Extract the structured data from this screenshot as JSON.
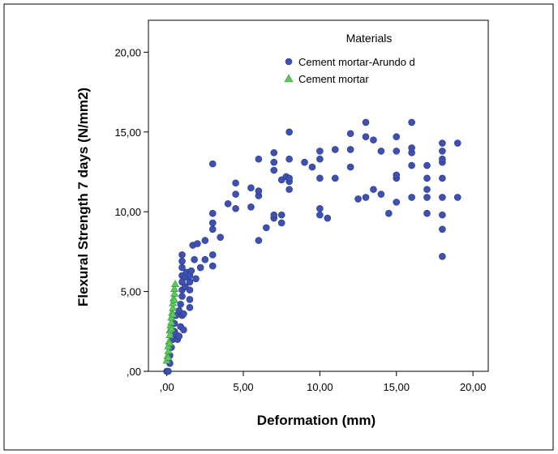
{
  "chart_data": {
    "type": "scatter",
    "title": "",
    "xlabel": "Deformation (mm)",
    "ylabel": "Flexural Strength 7 days (N/mm2)",
    "xlim": [
      -1.2,
      21.0
    ],
    "ylim": [
      0,
      22.0
    ],
    "xticks": [
      0,
      5,
      10,
      15,
      20
    ],
    "yticks": [
      0,
      5,
      10,
      15,
      20
    ],
    "xtick_labels": [
      ",00",
      "5,00",
      "10,00",
      "15,00",
      "20,00"
    ],
    "ytick_labels": [
      ",00",
      "5,00",
      "10,00",
      "15,00",
      "20,00"
    ],
    "grid": false,
    "legend_position": "top-right",
    "legend": {
      "title": "Materials",
      "entries": [
        {
          "label": "Cement mortar-Arundo d",
          "marker": "circle",
          "color": "#3f51b0"
        },
        {
          "label": "Cement mortar",
          "marker": "triangle",
          "color": "#5ec85e"
        }
      ]
    },
    "series": [
      {
        "name": "Cement mortar-Arundo d",
        "marker": "circle",
        "color": "#3f51b0",
        "points": [
          [
            0,
            0
          ],
          [
            0.05,
            0
          ],
          [
            0.1,
            0
          ],
          [
            0.2,
            0.5
          ],
          [
            0.2,
            1.0
          ],
          [
            0.3,
            1.5
          ],
          [
            0.4,
            2.0
          ],
          [
            0.5,
            2.5
          ],
          [
            0.5,
            3.0
          ],
          [
            0.6,
            3.5
          ],
          [
            0.6,
            2.3
          ],
          [
            0.7,
            2.0
          ],
          [
            0.8,
            2.2
          ],
          [
            0.8,
            3.8
          ],
          [
            0.9,
            4.2
          ],
          [
            0.9,
            2.8
          ],
          [
            1.0,
            3.5
          ],
          [
            1.0,
            4.7
          ],
          [
            1.0,
            5.1
          ],
          [
            1.0,
            5.6
          ],
          [
            1.0,
            6.0
          ],
          [
            1.0,
            6.5
          ],
          [
            1.0,
            6.9
          ],
          [
            1.0,
            7.3
          ],
          [
            1.1,
            2.6
          ],
          [
            1.1,
            3.6
          ],
          [
            1.2,
            5.3
          ],
          [
            1.2,
            5.9
          ],
          [
            1.3,
            6.2
          ],
          [
            1.5,
            4.0
          ],
          [
            1.5,
            4.5
          ],
          [
            1.5,
            5.1
          ],
          [
            1.5,
            5.6
          ],
          [
            1.5,
            6.0
          ],
          [
            1.6,
            6.3
          ],
          [
            1.7,
            7.9
          ],
          [
            1.8,
            7.0
          ],
          [
            1.9,
            5.8
          ],
          [
            2.0,
            8.0
          ],
          [
            2.2,
            6.5
          ],
          [
            2.5,
            8.2
          ],
          [
            2.5,
            7.0
          ],
          [
            3.0,
            6.6
          ],
          [
            3.0,
            7.3
          ],
          [
            3.0,
            8.9
          ],
          [
            3.0,
            9.3
          ],
          [
            3.0,
            9.9
          ],
          [
            3.0,
            13.0
          ],
          [
            3.5,
            8.4
          ],
          [
            4.0,
            10.5
          ],
          [
            4.5,
            10.2
          ],
          [
            4.5,
            11.1
          ],
          [
            4.5,
            11.8
          ],
          [
            5.5,
            10.3
          ],
          [
            5.5,
            11.5
          ],
          [
            6.0,
            8.2
          ],
          [
            6.0,
            11.0
          ],
          [
            6.0,
            11.3
          ],
          [
            6.0,
            13.3
          ],
          [
            6.5,
            9.0
          ],
          [
            7.0,
            9.6
          ],
          [
            7.0,
            9.8
          ],
          [
            7.0,
            12.6
          ],
          [
            7.0,
            13.1
          ],
          [
            7.0,
            13.7
          ],
          [
            7.5,
            9.3
          ],
          [
            7.5,
            9.8
          ],
          [
            7.5,
            12.0
          ],
          [
            7.8,
            12.2
          ],
          [
            8.0,
            11.4
          ],
          [
            8.0,
            11.9
          ],
          [
            8.0,
            12.1
          ],
          [
            8.0,
            13.3
          ],
          [
            8.0,
            15.0
          ],
          [
            9.0,
            13.1
          ],
          [
            9.5,
            12.8
          ],
          [
            10.0,
            9.8
          ],
          [
            10.0,
            10.2
          ],
          [
            10.0,
            12.1
          ],
          [
            10.0,
            13.3
          ],
          [
            10.0,
            13.8
          ],
          [
            10.5,
            9.6
          ],
          [
            11.0,
            12.1
          ],
          [
            11.0,
            13.9
          ],
          [
            12.0,
            12.8
          ],
          [
            12.0,
            13.9
          ],
          [
            12.0,
            14.9
          ],
          [
            12.5,
            10.8
          ],
          [
            13.0,
            10.9
          ],
          [
            13.0,
            14.7
          ],
          [
            13.0,
            15.6
          ],
          [
            13.5,
            11.4
          ],
          [
            13.5,
            14.5
          ],
          [
            14.0,
            11.1
          ],
          [
            14.0,
            13.8
          ],
          [
            14.5,
            9.9
          ],
          [
            15.0,
            10.6
          ],
          [
            15.0,
            12.1
          ],
          [
            15.0,
            12.3
          ],
          [
            15.0,
            13.8
          ],
          [
            15.0,
            14.7
          ],
          [
            16.0,
            10.9
          ],
          [
            16.0,
            12.9
          ],
          [
            16.0,
            13.7
          ],
          [
            16.0,
            14.0
          ],
          [
            16.0,
            15.6
          ],
          [
            17.0,
            9.9
          ],
          [
            17.0,
            10.9
          ],
          [
            17.0,
            11.4
          ],
          [
            17.0,
            12.1
          ],
          [
            17.0,
            12.9
          ],
          [
            18.0,
            7.2
          ],
          [
            18.0,
            8.9
          ],
          [
            18.0,
            9.8
          ],
          [
            18.0,
            10.9
          ],
          [
            18.0,
            12.1
          ],
          [
            18.0,
            13.1
          ],
          [
            18.0,
            13.3
          ],
          [
            18.0,
            13.8
          ],
          [
            18.0,
            14.3
          ],
          [
            19.0,
            10.9
          ],
          [
            19.0,
            14.3
          ]
        ]
      },
      {
        "name": "Cement mortar",
        "marker": "triangle",
        "color": "#5ec85e",
        "points": [
          [
            0.0,
            0.7
          ],
          [
            0.05,
            1.0
          ],
          [
            0.1,
            1.3
          ],
          [
            0.1,
            1.6
          ],
          [
            0.15,
            1.9
          ],
          [
            0.2,
            2.3
          ],
          [
            0.2,
            2.6
          ],
          [
            0.25,
            2.9
          ],
          [
            0.3,
            3.1
          ],
          [
            0.3,
            3.4
          ],
          [
            0.35,
            3.7
          ],
          [
            0.4,
            4.0
          ],
          [
            0.4,
            4.3
          ],
          [
            0.45,
            4.6
          ],
          [
            0.5,
            4.9
          ],
          [
            0.5,
            5.2
          ],
          [
            0.55,
            5.5
          ],
          [
            0.1,
            0.9
          ],
          [
            0.2,
            1.8
          ],
          [
            0.3,
            2.7
          ],
          [
            0.4,
            3.6
          ],
          [
            0.5,
            4.5
          ]
        ]
      }
    ]
  }
}
